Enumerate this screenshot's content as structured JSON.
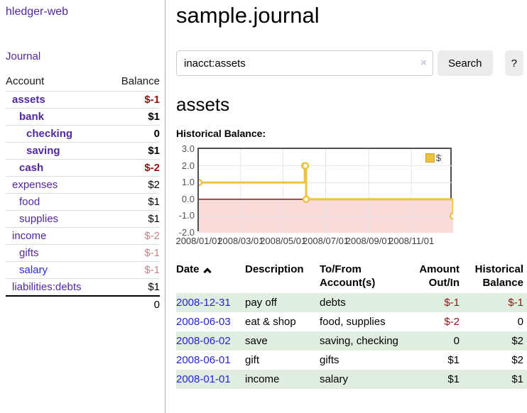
{
  "colors": {
    "link_purple": "#53279d",
    "link_blue": "#2b2bd0",
    "negative_strong": "#8f1212",
    "negative_soft": "#c08484",
    "row_green": "#e0eee0",
    "series_gold": "#edc240"
  },
  "sidebar": {
    "app_link": "hledger-web",
    "journal_link": "Journal",
    "table": {
      "account_header": "Account",
      "balance_header": "Balance",
      "rows": [
        {
          "name": "assets",
          "depth": 1,
          "bold": true,
          "balance": "$-1",
          "neg": "strong"
        },
        {
          "name": "bank",
          "depth": 2,
          "bold": true,
          "balance": "$1",
          "neg": "none"
        },
        {
          "name": "checking",
          "depth": 3,
          "bold": true,
          "balance": "0",
          "neg": "none"
        },
        {
          "name": "saving",
          "depth": 3,
          "bold": true,
          "balance": "$1",
          "neg": "none"
        },
        {
          "name": "cash",
          "depth": 2,
          "bold": true,
          "balance": "$-2",
          "neg": "strong"
        },
        {
          "name": "expenses",
          "depth": 1,
          "bold": false,
          "balance": "$2",
          "neg": "none"
        },
        {
          "name": "food",
          "depth": 2,
          "bold": false,
          "balance": "$1",
          "neg": "none"
        },
        {
          "name": "supplies",
          "depth": 2,
          "bold": false,
          "balance": "$1",
          "neg": "none"
        },
        {
          "name": "income",
          "depth": 1,
          "bold": false,
          "balance": "$-2",
          "neg": "soft"
        },
        {
          "name": "gifts",
          "depth": 2,
          "bold": false,
          "balance": "$-1",
          "neg": "soft"
        },
        {
          "name": "salary",
          "depth": 2,
          "bold": false,
          "balance": "$-1",
          "neg": "soft",
          "link_style": "unvisited"
        },
        {
          "name": "liabilities:debts",
          "depth": 1,
          "bold": false,
          "balance": "$1",
          "neg": "none"
        }
      ],
      "total": "0"
    }
  },
  "main": {
    "title": "sample.journal",
    "search": {
      "value": "inacct:assets",
      "clear_icon": "×",
      "button": "Search",
      "help_button": "?"
    },
    "account_heading": "assets",
    "chart_heading": "Historical Balance:"
  },
  "chart_data": {
    "type": "line",
    "style": "step",
    "title": "Historical Balance",
    "legend": [
      {
        "name": "$",
        "color": "#edc240",
        "position": "top-right"
      }
    ],
    "x_range": [
      "2008-01-01",
      "2008-12-31"
    ],
    "ylim": [
      -2.0,
      3.0
    ],
    "grid": true,
    "negative_region_shaded": true,
    "y_ticks": [
      3.0,
      2.0,
      1.0,
      0.0,
      -1.0,
      -2.0
    ],
    "x_ticks": [
      {
        "date": "2008-01-01",
        "label": "2008/01/01"
      },
      {
        "date": "2008-03-01",
        "label": "2008/03/01"
      },
      {
        "date": "2008-05-01",
        "label": "2008/05/01"
      },
      {
        "date": "2008-07-01",
        "label": "2008/07/01"
      },
      {
        "date": "2008-09-01",
        "label": "2008/09/01"
      },
      {
        "date": "2008-11-01",
        "label": "2008/11/01"
      }
    ],
    "series": [
      {
        "name": "$",
        "points": [
          {
            "x": "2008-01-01",
            "y": 1
          },
          {
            "x": "2008-06-01",
            "y": 2
          },
          {
            "x": "2008-06-02",
            "y": 2
          },
          {
            "x": "2008-06-03",
            "y": 0
          },
          {
            "x": "2008-12-31",
            "y": -1
          }
        ]
      }
    ],
    "colors": {
      "series": "#edc240",
      "negative_fill": "#fbdada",
      "zero_line": "#8b1a1a",
      "grid": "#e4e4e4",
      "border": "#4f4f4f"
    }
  },
  "transactions": {
    "headers": {
      "date": "Date",
      "description": "Description",
      "account": "To/From Account(s)",
      "amount": "Amount Out/In",
      "balance": "Historical Balance"
    },
    "rows": [
      {
        "date": "2008-12-31",
        "description": "pay off",
        "accounts": "debts",
        "amount": "$-1",
        "amount_neg": true,
        "balance": "$-1",
        "balance_neg": true,
        "shaded": true
      },
      {
        "date": "2008-06-03",
        "description": "eat & shop",
        "accounts": "food, supplies",
        "amount": "$-2",
        "amount_neg": true,
        "balance": "0",
        "balance_neg": false,
        "shaded": false
      },
      {
        "date": "2008-06-02",
        "description": "save",
        "accounts": "saving, checking",
        "amount": "0",
        "amount_neg": false,
        "balance": "$2",
        "balance_neg": false,
        "shaded": true
      },
      {
        "date": "2008-06-01",
        "description": "gift",
        "accounts": "gifts",
        "amount": "$1",
        "amount_neg": false,
        "balance": "$2",
        "balance_neg": false,
        "shaded": false
      },
      {
        "date": "2008-01-01",
        "description": "income",
        "accounts": "salary",
        "amount": "$1",
        "amount_neg": false,
        "balance": "$1",
        "balance_neg": false,
        "shaded": true
      }
    ]
  }
}
